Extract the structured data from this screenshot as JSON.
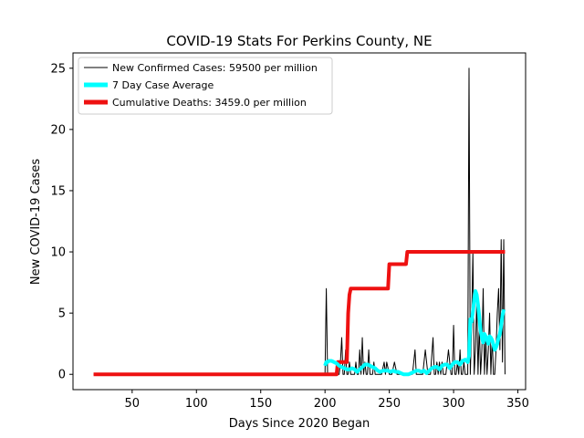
{
  "chart_data": {
    "type": "line",
    "title": "COVID-19 Stats For Perkins County, NE",
    "xlabel": "Days Since 2020 Began",
    "ylabel": "New COVID-19 Cases",
    "xlim": [
      4,
      356
    ],
    "ylim": [
      -1.25,
      26.25
    ],
    "xticks": [
      50,
      100,
      150,
      200,
      250,
      300,
      350
    ],
    "yticks": [
      0,
      5,
      10,
      15,
      20,
      25
    ],
    "grid": false,
    "legend_position": "top-left",
    "series": [
      {
        "name": "New Confirmed Cases: 59500 per million",
        "color": "#000000",
        "x": [
          20,
          30,
          40,
          50,
          60,
          70,
          80,
          90,
          100,
          110,
          120,
          130,
          140,
          150,
          160,
          170,
          180,
          190,
          199,
          200,
          201,
          202,
          203,
          205,
          207,
          209,
          210,
          211,
          212,
          213,
          214,
          215,
          216,
          217,
          218,
          219,
          220,
          221,
          222,
          223,
          224,
          225,
          226,
          227,
          228,
          229,
          230,
          231,
          232,
          233,
          234,
          235,
          236,
          237,
          238,
          239,
          240,
          242,
          244,
          246,
          247,
          248,
          250,
          252,
          254,
          256,
          258,
          260,
          262,
          264,
          266,
          268,
          270,
          271,
          272,
          273,
          274,
          276,
          278,
          280,
          282,
          284,
          285,
          286,
          287,
          288,
          289,
          290,
          291,
          292,
          294,
          296,
          298,
          299,
          300,
          301,
          302,
          303,
          304,
          305,
          306,
          307,
          308,
          309,
          310,
          311,
          312,
          313,
          314,
          315,
          316,
          317,
          318,
          319,
          320,
          321,
          322,
          323,
          324,
          325,
          326,
          327,
          328,
          329,
          330,
          331,
          332,
          333,
          334,
          335,
          336,
          337,
          338,
          339,
          340
        ],
        "values": [
          0,
          0,
          0,
          0,
          0,
          0,
          0,
          0,
          0,
          0,
          0,
          0,
          0,
          0,
          0,
          0,
          0,
          0,
          0,
          0,
          7,
          0,
          0,
          0,
          0,
          0,
          0,
          0,
          1,
          3,
          0,
          0,
          2,
          0,
          0,
          1,
          0,
          0,
          0,
          0,
          1,
          0,
          0,
          2,
          0,
          3,
          0,
          1,
          0,
          0,
          2,
          0,
          0,
          0,
          1,
          0,
          0,
          0,
          0,
          1,
          0,
          1,
          0,
          0,
          1,
          0,
          0,
          0,
          0,
          0,
          0,
          0,
          2,
          0,
          0,
          0,
          0,
          0,
          2,
          0,
          0,
          3,
          0,
          0,
          1,
          0,
          1,
          0,
          1,
          0,
          0,
          2,
          0,
          0,
          4,
          0,
          0,
          1,
          0,
          2,
          0,
          0,
          1,
          0,
          0,
          0,
          25,
          0,
          4,
          10,
          0,
          2,
          6,
          0,
          4,
          0,
          2,
          7,
          0,
          3,
          0,
          2,
          5,
          0,
          3,
          0,
          0,
          2,
          5,
          7,
          2,
          11,
          1,
          11,
          0
        ],
        "linewidth": 1
      },
      {
        "name": "7 Day Case Average",
        "color": "#00ffff",
        "x": [
          200,
          201,
          202,
          203,
          205,
          207,
          209,
          211,
          213,
          215,
          217,
          219,
          221,
          223,
          225,
          227,
          229,
          231,
          233,
          235,
          237,
          239,
          241,
          243,
          245,
          247,
          249,
          251,
          253,
          255,
          257,
          259,
          261,
          263,
          265,
          267,
          269,
          271,
          273,
          275,
          277,
          279,
          281,
          283,
          285,
          287,
          289,
          291,
          293,
          295,
          297,
          299,
          301,
          303,
          305,
          307,
          309,
          311,
          312,
          313,
          314,
          315,
          316,
          317,
          318,
          319,
          320,
          321,
          322,
          323,
          324,
          325,
          326,
          327,
          328,
          329,
          330,
          331,
          332,
          333,
          334,
          335,
          336,
          337,
          338,
          339
        ],
        "values": [
          0.7,
          1.0,
          1.0,
          1.1,
          1.1,
          1.0,
          0.9,
          0.7,
          0.6,
          0.5,
          0.4,
          0.4,
          0.5,
          0.4,
          0.2,
          0.4,
          0.6,
          0.8,
          0.8,
          0.7,
          0.6,
          0.5,
          0.3,
          0.2,
          0.3,
          0.3,
          0.3,
          0.2,
          0.3,
          0.2,
          0.2,
          0.1,
          0.0,
          0.0,
          0.0,
          0.1,
          0.2,
          0.3,
          0.3,
          0.2,
          0.3,
          0.1,
          0.3,
          0.5,
          0.6,
          0.6,
          0.4,
          0.7,
          0.8,
          0.8,
          0.5,
          0.8,
          1.0,
          1.0,
          0.8,
          1.1,
          1.2,
          1.0,
          1.5,
          4.5,
          4.3,
          5.1,
          6.1,
          6.8,
          6.5,
          5.7,
          4.7,
          3.5,
          3.0,
          2.6,
          3.3,
          3.1,
          2.8,
          2.5,
          3.1,
          3.0,
          2.8,
          2.4,
          2.0,
          2.2,
          2.5,
          3.0,
          3.3,
          4.0,
          4.8,
          5.3
        ],
        "linewidth": 4
      },
      {
        "name": "Cumulative Deaths: 3459.0 per million",
        "color": "#ee1111",
        "x": [
          20,
          209,
          210,
          217,
          218,
          219,
          220,
          249,
          250,
          263,
          264,
          340
        ],
        "values": [
          0,
          0,
          1,
          1,
          5,
          6.5,
          7,
          7,
          9,
          9,
          10,
          10
        ],
        "linewidth": 4
      }
    ]
  }
}
